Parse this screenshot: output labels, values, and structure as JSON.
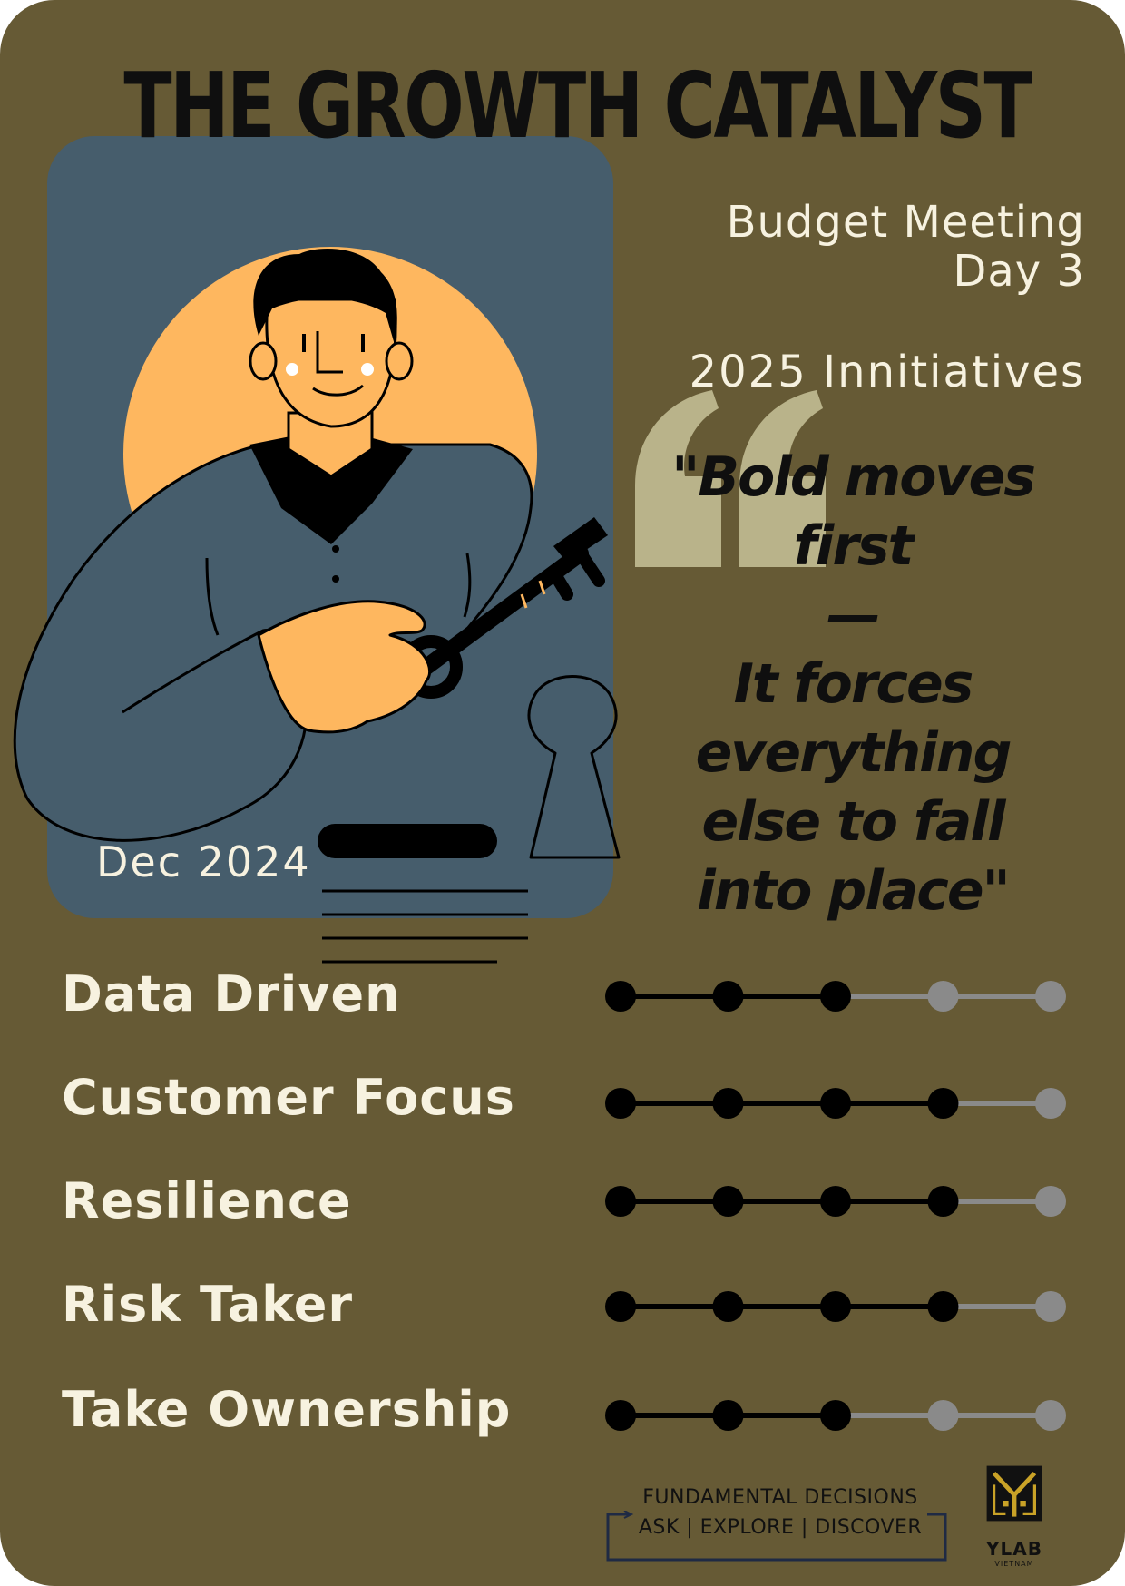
{
  "title": "THE GROWTH CATALYST",
  "meeting": {
    "line1": "Budget Meeting",
    "line2": "Day 3",
    "initiatives": "2025 Innitiatives"
  },
  "quote": {
    "line1": "\"Bold moves",
    "line2": "first",
    "dash": "—",
    "line3": "It forces",
    "line4": "everything",
    "line5": "else to fall",
    "line6": "into place\""
  },
  "date": "Dec 2024",
  "traits": [
    {
      "label": "Data Driven",
      "value": 3,
      "max": 5
    },
    {
      "label": "Customer Focus",
      "value": 4,
      "max": 5
    },
    {
      "label": "Resilience",
      "value": 4,
      "max": 5
    },
    {
      "label": "Risk Taker",
      "value": 4,
      "max": 5
    },
    {
      "label": "Take Ownership",
      "value": 3,
      "max": 5
    }
  ],
  "footer": {
    "line1": "FUNDAMENTAL DECISIONS",
    "line2": "ASK | EXPLORE | DISCOVER"
  },
  "logo": {
    "name": "YLAB",
    "sub": "VIETNAM"
  },
  "colors": {
    "background": "#665a35",
    "panel": "#465d6c",
    "sun": "#feb75f",
    "cream_text": "#f7f2e0",
    "dark_text": "#0f0f0f",
    "meter_filled": "#000000",
    "meter_empty": "#8a8a8a",
    "quote_mark": "#b9b38a",
    "logo_gold": "#c9a227"
  }
}
